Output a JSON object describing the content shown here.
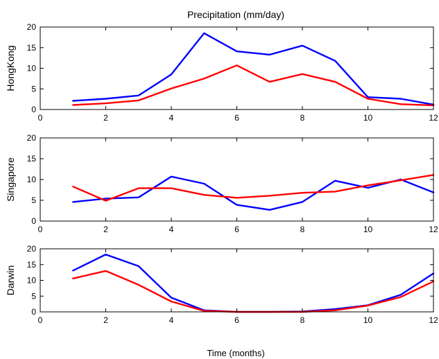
{
  "figure": {
    "title": "Precipitation (mm/day)",
    "xlabel": "Time (months)"
  },
  "chart_data": [
    {
      "type": "line",
      "ylabel": "HongKong",
      "xlim": [
        0,
        12
      ],
      "ylim": [
        0,
        20
      ],
      "xticks": [
        0,
        2,
        4,
        6,
        8,
        10,
        12
      ],
      "yticks": [
        0,
        5,
        10,
        15,
        20
      ],
      "grid": false,
      "x": [
        1,
        2,
        3,
        4,
        5,
        6,
        7,
        8,
        9,
        10,
        11,
        12
      ],
      "series": [
        {
          "color": "#0000ff",
          "values": [
            2.1,
            2.6,
            3.4,
            8.5,
            18.5,
            14.1,
            13.3,
            15.5,
            11.8,
            3.0,
            2.6,
            1.2
          ]
        },
        {
          "color": "#ff0000",
          "values": [
            1.1,
            1.5,
            2.2,
            5.1,
            7.5,
            10.7,
            6.7,
            8.6,
            6.7,
            2.6,
            1.3,
            1.0
          ]
        }
      ]
    },
    {
      "type": "line",
      "ylabel": "Singapore",
      "xlim": [
        0,
        12
      ],
      "ylim": [
        0,
        20
      ],
      "xticks": [
        0,
        2,
        4,
        6,
        8,
        10,
        12
      ],
      "yticks": [
        0,
        5,
        10,
        15,
        20
      ],
      "grid": false,
      "x": [
        1,
        2,
        3,
        4,
        5,
        6,
        7,
        8,
        9,
        10,
        11,
        12
      ],
      "series": [
        {
          "color": "#0000ff",
          "values": [
            4.6,
            5.4,
            5.7,
            10.7,
            9.0,
            3.9,
            2.7,
            4.6,
            9.7,
            8.0,
            10.0,
            6.9
          ]
        },
        {
          "color": "#ff0000",
          "values": [
            8.3,
            4.9,
            7.9,
            7.9,
            6.3,
            5.6,
            6.1,
            6.8,
            7.1,
            8.6,
            9.8,
            11.1
          ]
        }
      ]
    },
    {
      "type": "line",
      "ylabel": "Darwin",
      "xlim": [
        0,
        12
      ],
      "ylim": [
        0,
        20
      ],
      "xticks": [
        0,
        2,
        4,
        6,
        8,
        10,
        12
      ],
      "yticks": [
        0,
        5,
        10,
        15,
        20
      ],
      "grid": false,
      "x": [
        1,
        2,
        3,
        4,
        5,
        6,
        7,
        8,
        9,
        10,
        11,
        12
      ],
      "series": [
        {
          "color": "#0000ff",
          "values": [
            13.1,
            18.2,
            14.5,
            4.5,
            0.5,
            0.0,
            0.0,
            0.1,
            0.9,
            2.1,
            5.4,
            12.2
          ]
        },
        {
          "color": "#ff0000",
          "values": [
            10.6,
            13.0,
            8.6,
            3.3,
            0.3,
            0.0,
            0.0,
            0.0,
            0.5,
            2.0,
            4.7,
            9.7
          ]
        }
      ]
    }
  ]
}
